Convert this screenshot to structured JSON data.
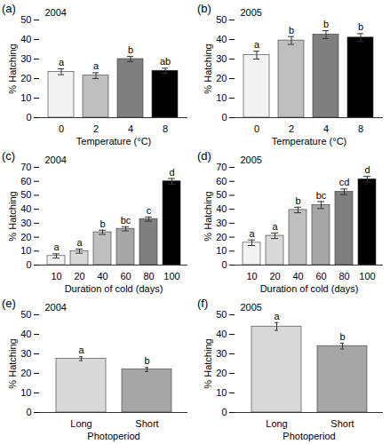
{
  "chart_data": [
    {
      "type": "bar",
      "panel_label": "(a)",
      "title": "2004",
      "x_label": "Temperature (°C)",
      "y_label": "% Hatching",
      "categories": [
        "0",
        "2",
        "4",
        "8"
      ],
      "values": [
        23.5,
        21.5,
        30,
        24
      ],
      "errors": [
        1.5,
        1.5,
        1.3,
        1.3
      ],
      "letters": [
        "a",
        "a",
        "b",
        "ab"
      ],
      "colors": [
        "#f2f2f2",
        "#bfbfbf",
        "#7f7f7f",
        "#000000"
      ],
      "ylim": [
        0,
        50
      ],
      "yticks": [
        0,
        10,
        20,
        30,
        40,
        50
      ]
    },
    {
      "type": "bar",
      "panel_label": "(b)",
      "title": "2005",
      "x_label": "Temperature (°C)",
      "y_label": "% Hatching",
      "categories": [
        "0",
        "2",
        "4",
        "8"
      ],
      "values": [
        32,
        39.5,
        42.5,
        41
      ],
      "errors": [
        2,
        2,
        2,
        2
      ],
      "letters": [
        "a",
        "b",
        "b",
        "b"
      ],
      "colors": [
        "#f2f2f2",
        "#bfbfbf",
        "#7f7f7f",
        "#000000"
      ],
      "ylim": [
        0,
        50
      ],
      "yticks": [
        0,
        10,
        20,
        30,
        40,
        50
      ]
    },
    {
      "type": "bar",
      "panel_label": "(c)",
      "title": "2004",
      "x_label": "Duration of cold (days)",
      "y_label": "% Hatching",
      "categories": [
        "10",
        "20",
        "40",
        "60",
        "80",
        "100"
      ],
      "values": [
        6.5,
        10,
        23.5,
        26,
        33,
        60
      ],
      "errors": [
        1.5,
        1.5,
        1.5,
        1.5,
        1.5,
        2
      ],
      "letters": [
        "a",
        "a",
        "b",
        "bc",
        "c",
        "d"
      ],
      "colors": [
        "#f2f2f2",
        "#d9d9d9",
        "#bfbfbf",
        "#a6a6a6",
        "#7f7f7f",
        "#000000"
      ],
      "ylim": [
        0,
        70
      ],
      "yticks": [
        0,
        10,
        20,
        30,
        40,
        50,
        60,
        70
      ]
    },
    {
      "type": "bar",
      "panel_label": "(d)",
      "title": "2005",
      "x_label": "Duration of cold (days)",
      "y_label": "% Hatching",
      "categories": [
        "10",
        "20",
        "40",
        "60",
        "80",
        "100"
      ],
      "values": [
        16,
        21,
        39.5,
        43,
        52.5,
        61.5
      ],
      "errors": [
        2,
        2,
        2,
        2.5,
        2,
        2
      ],
      "letters": [
        "a",
        "a",
        "b",
        "bc",
        "cd",
        "d"
      ],
      "colors": [
        "#f2f2f2",
        "#d9d9d9",
        "#bfbfbf",
        "#a6a6a6",
        "#7f7f7f",
        "#000000"
      ],
      "ylim": [
        0,
        70
      ],
      "yticks": [
        0,
        10,
        20,
        30,
        40,
        50,
        60,
        70
      ]
    },
    {
      "type": "bar",
      "panel_label": "(e)",
      "title": "2004",
      "x_label": "Photoperiod",
      "y_label": "% Hatching",
      "categories": [
        "Long",
        "Short"
      ],
      "values": [
        27.5,
        22
      ],
      "errors": [
        1,
        1
      ],
      "letters": [
        "a",
        "b"
      ],
      "colors": [
        "#d9d9d9",
        "#a6a6a6"
      ],
      "ylim": [
        0,
        50
      ],
      "yticks": [
        0,
        10,
        20,
        30,
        40,
        50
      ]
    },
    {
      "type": "bar",
      "panel_label": "(f)",
      "title": "2005",
      "x_label": "Photoperiod",
      "y_label": "% Hatching",
      "categories": [
        "Long",
        "Short"
      ],
      "values": [
        44,
        34
      ],
      "errors": [
        2,
        1.5
      ],
      "letters": [
        "a",
        "b"
      ],
      "colors": [
        "#d9d9d9",
        "#a6a6a6"
      ],
      "ylim": [
        0,
        50
      ],
      "yticks": [
        0,
        10,
        20,
        30,
        40,
        50
      ]
    }
  ]
}
